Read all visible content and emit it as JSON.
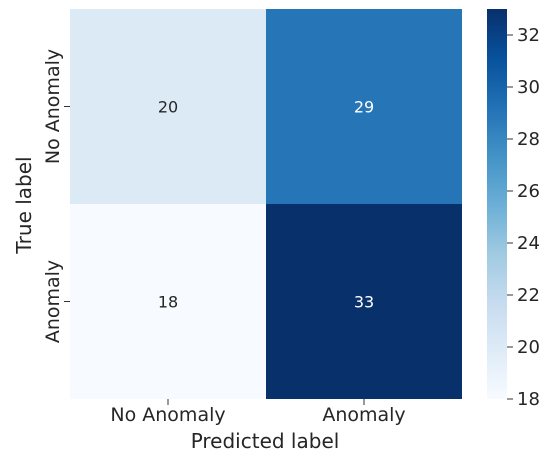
{
  "chart_data": {
    "type": "heatmap",
    "title": "",
    "xlabel": "Predicted label",
    "ylabel": "True label",
    "x_categories": [
      "No Anomaly",
      "Anomaly"
    ],
    "y_categories": [
      "No Anomaly",
      "Anomaly"
    ],
    "values": [
      [
        20,
        29
      ],
      [
        18,
        33
      ]
    ],
    "colormap": "Blues",
    "colorbar": {
      "min": 18,
      "max": 33,
      "ticks": [
        18,
        20,
        22,
        24,
        26,
        28,
        30,
        32
      ]
    }
  }
}
